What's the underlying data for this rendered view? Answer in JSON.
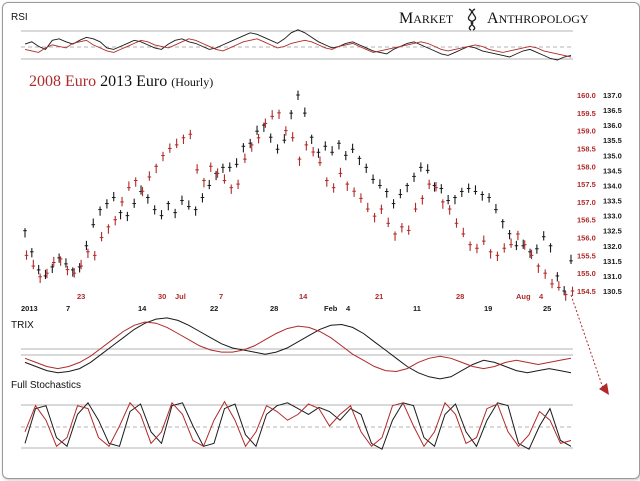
{
  "brand": {
    "word1_initial": "M",
    "word1_rest": "ARKET",
    "word2_initial": "A",
    "word2_rest": "NTHROPOLOGY"
  },
  "colors": {
    "red": "#b02a2a",
    "black": "#1a1a1a",
    "grid": "#9a9a9a",
    "arrow": "#b02a2a"
  },
  "panels": {
    "rsi": {
      "label": "RSI"
    },
    "trix": {
      "label": "TRIX"
    },
    "stoch": {
      "label": "Full Stochastics"
    }
  },
  "chart_data": {
    "type": "line",
    "title": {
      "part1_year": "2008",
      "part1_word": "Euro",
      "part2_year": "2013",
      "part2_word": "Euro",
      "suffix": "(Hourly)"
    },
    "x_ticks_black": [
      "2013",
      "7",
      "14",
      "22",
      "28",
      "Feb",
      "4",
      "11",
      "19",
      "25"
    ],
    "x_ticks_red": [
      "23",
      "30",
      "Jul",
      "7",
      "14",
      "21",
      "28",
      "Aug",
      "4"
    ],
    "y_axis_red": {
      "ticks": [
        "160.0",
        "159.5",
        "159.0",
        "158.5",
        "158.0",
        "157.5",
        "157.0",
        "156.5",
        "156.0",
        "155.5",
        "155.0",
        "154.5"
      ],
      "ylim": [
        154.5,
        160.0
      ]
    },
    "y_axis_black": {
      "ticks": [
        "137.0",
        "136.5",
        "136.0",
        "135.5",
        "135.0",
        "134.5",
        "134.0",
        "133.5",
        "133.0",
        "132.5",
        "132.0",
        "131.5",
        "131.0",
        "130.5"
      ],
      "ylim": [
        130.5,
        137.0
      ]
    },
    "series": [
      {
        "color": "black",
        "values": [
          132.5,
          131.8,
          131.2,
          131.0,
          131.3,
          131.6,
          131.4,
          131.2,
          131.3,
          132.0,
          132.7,
          133.2,
          133.4,
          133.6,
          133.1,
          133.0,
          133.4,
          133.8,
          133.6,
          133.2,
          133.0,
          133.4,
          133.1,
          133.5,
          133.3,
          133.2,
          133.6,
          134.0,
          134.4,
          134.6,
          134.6,
          134.7,
          135.3,
          135.4,
          135.8,
          136.0,
          135.6,
          135.2,
          135.5,
          136.4,
          137.0,
          136.4,
          135.6,
          135.1,
          135.3,
          135.1,
          135.4,
          135.0,
          135.2,
          134.9,
          134.6,
          134.2,
          134.0,
          133.8,
          133.4,
          133.7,
          134.0,
          134.3,
          134.6,
          134.5,
          134.0,
          133.9,
          133.5,
          133.6,
          133.8,
          133.9,
          133.8,
          133.7,
          133.6,
          133.2,
          132.8,
          132.4,
          132.0,
          132.0,
          131.8,
          131.9,
          132.3,
          132.0,
          131.0,
          130.5,
          131.5
        ]
      },
      {
        "color": "red",
        "values": [
          155.5,
          155.2,
          154.9,
          155.0,
          155.3,
          155.4,
          155.1,
          155.0,
          155.2,
          155.6,
          155.5,
          156.0,
          156.3,
          156.5,
          157.0,
          157.4,
          157.6,
          157.3,
          157.7,
          158.0,
          158.3,
          158.5,
          158.6,
          158.8,
          158.9,
          157.9,
          157.6,
          158.0,
          157.8,
          157.6,
          157.4,
          157.5,
          158.2,
          158.6,
          158.8,
          159.2,
          159.4,
          159.5,
          159.0,
          158.8,
          158.2,
          158.6,
          158.4,
          158.1,
          157.6,
          157.4,
          157.8,
          157.5,
          157.3,
          157.1,
          156.8,
          156.6,
          156.8,
          156.4,
          156.1,
          156.3,
          156.2,
          156.8,
          157.1,
          157.5,
          157.4,
          157.0,
          156.8,
          156.4,
          156.1,
          155.8,
          155.7,
          155.9,
          155.6,
          155.5,
          155.7,
          155.8,
          156.1,
          155.8,
          155.5,
          155.2,
          155.0,
          154.7,
          154.6,
          154.4,
          154.5
        ]
      }
    ],
    "indicators": {
      "rsi": {
        "black": [
          55,
          58,
          52,
          48,
          60,
          62,
          58,
          55,
          60,
          64,
          62,
          58,
          50,
          48,
          52,
          56,
          60,
          58,
          54,
          50,
          48,
          55,
          60,
          62,
          58,
          56,
          52,
          48,
          50,
          54,
          58,
          62,
          66,
          70,
          68,
          64,
          60,
          56,
          62,
          70,
          74,
          70,
          64,
          58,
          54,
          50,
          52,
          56,
          58,
          54,
          50,
          46,
          44,
          42,
          48,
          52,
          56,
          58,
          54,
          50,
          46,
          42,
          40,
          44,
          48,
          52,
          50,
          46,
          44,
          42,
          40,
          38,
          42,
          46,
          48,
          44,
          40,
          36,
          34,
          38,
          40
        ],
        "red": [
          48,
          46,
          44,
          50,
          54,
          52,
          50,
          56,
          58,
          60,
          54,
          50,
          46,
          44,
          48,
          52,
          56,
          60,
          58,
          54,
          52,
          50,
          54,
          58,
          62,
          60,
          56,
          52,
          48,
          46,
          50,
          54,
          58,
          60,
          62,
          58,
          54,
          50,
          52,
          56,
          58,
          60,
          58,
          54,
          50,
          48,
          52,
          54,
          56,
          52,
          48,
          44,
          46,
          48,
          50,
          52,
          54,
          56,
          58,
          56,
          52,
          48,
          46,
          48,
          50,
          52,
          54,
          52,
          48,
          46,
          44,
          46,
          48,
          50,
          52,
          50,
          46,
          44,
          42,
          40,
          38
        ]
      },
      "trix": {
        "black": [
          -0.2,
          -0.3,
          -0.4,
          -0.45,
          -0.42,
          -0.35,
          -0.2,
          0.0,
          0.2,
          0.4,
          0.6,
          0.75,
          0.85,
          0.88,
          0.82,
          0.7,
          0.55,
          0.4,
          0.25,
          0.15,
          0.1,
          0.05,
          0.0,
          0.05,
          0.15,
          0.3,
          0.45,
          0.6,
          0.7,
          0.72,
          0.65,
          0.5,
          0.3,
          0.1,
          -0.1,
          -0.3,
          -0.45,
          -0.55,
          -0.6,
          -0.55,
          -0.4,
          -0.25,
          -0.15,
          -0.2,
          -0.3,
          -0.4,
          -0.45,
          -0.4,
          -0.35,
          -0.4,
          -0.45
        ],
        "red": [
          -0.1,
          -0.2,
          -0.3,
          -0.35,
          -0.3,
          -0.2,
          -0.05,
          0.15,
          0.35,
          0.55,
          0.7,
          0.78,
          0.75,
          0.65,
          0.5,
          0.35,
          0.2,
          0.1,
          0.05,
          0.05,
          0.1,
          0.2,
          0.35,
          0.5,
          0.62,
          0.68,
          0.65,
          0.55,
          0.4,
          0.2,
          0.0,
          -0.15,
          -0.3,
          -0.4,
          -0.42,
          -0.35,
          -0.2,
          -0.1,
          -0.05,
          -0.1,
          -0.2,
          -0.3,
          -0.35,
          -0.3,
          -0.2,
          -0.15,
          -0.2,
          -0.25,
          -0.2,
          -0.15,
          -0.1
        ]
      },
      "stochastics": {
        "black": [
          20,
          80,
          85,
          30,
          15,
          70,
          90,
          60,
          20,
          15,
          75,
          88,
          40,
          20,
          85,
          90,
          50,
          15,
          20,
          80,
          88,
          35,
          15,
          70,
          85,
          90,
          80,
          70,
          82,
          75,
          60,
          80,
          70,
          20,
          10,
          60,
          90,
          85,
          30,
          15,
          70,
          88,
          40,
          15,
          60,
          90,
          85,
          20,
          10,
          50,
          80,
          25,
          15
        ],
        "red": [
          40,
          85,
          60,
          15,
          30,
          85,
          80,
          30,
          15,
          50,
          90,
          70,
          20,
          40,
          90,
          70,
          25,
          15,
          60,
          92,
          60,
          15,
          40,
          85,
          75,
          60,
          70,
          88,
          80,
          50,
          70,
          85,
          40,
          15,
          30,
          85,
          90,
          50,
          15,
          40,
          90,
          70,
          20,
          30,
          80,
          88,
          40,
          15,
          35,
          75,
          60,
          20,
          25
        ]
      }
    }
  }
}
